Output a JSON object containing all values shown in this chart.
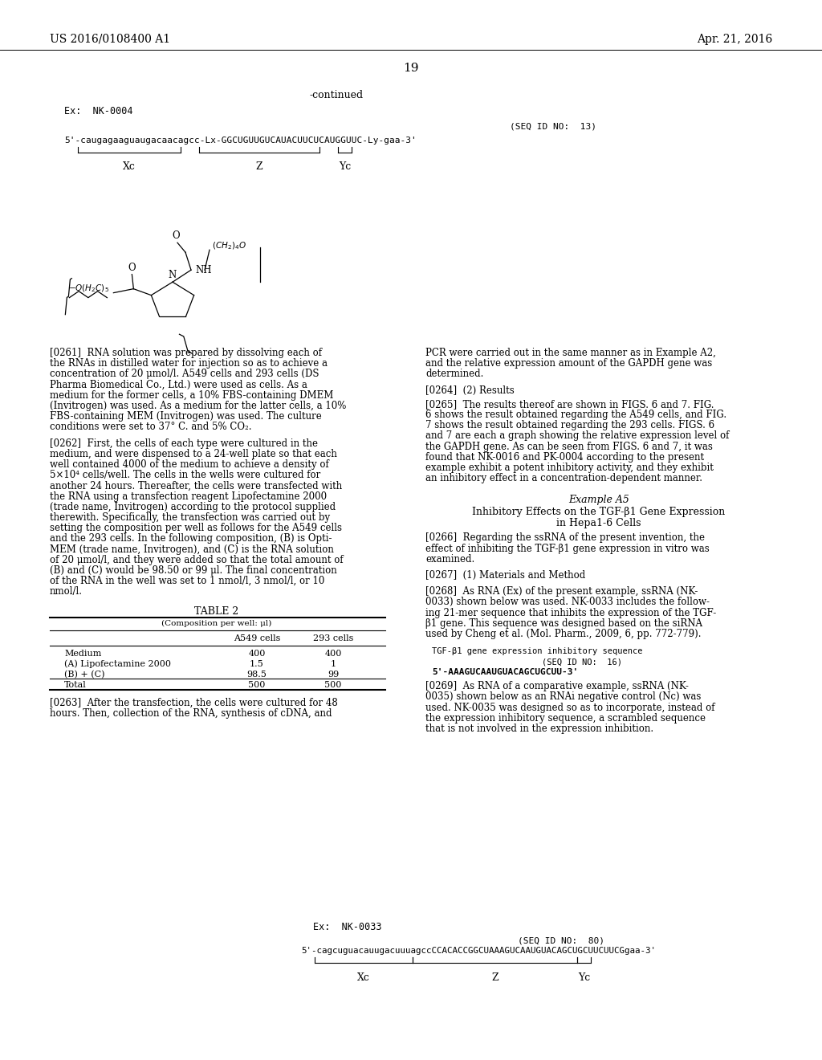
{
  "page_num": "19",
  "header_left": "US 2016/0108400 A1",
  "header_right": "Apr. 21, 2016",
  "continued_label": "-continued",
  "ex1_label": "Ex:  NK-0004",
  "seq_id1": "(SEQ ID NO:  13)",
  "seq1_text": "5'-caugagaaguaugacaacagcc-Lx-GGCUGUUGUCAUACUUCUCAUGGUUC-Ly-gaa-3'",
  "seq1_5prime": "5'-",
  "seq1_xc": "caugagaaguaugacaacagcc",
  "seq1_lx": "-Lx-",
  "seq1_z": "GGCUGUUGUCAUACUUCUCAUGGUUC",
  "seq1_ly": "-Ly-",
  "seq1_yc": "gaa",
  "seq1_3prime": "-3'",
  "para_0261_lines": [
    "[0261]  RNA solution was prepared by dissolving each of",
    "the RNAs in distilled water for injection so as to achieve a",
    "concentration of 20 μmol/l. A549 cells and 293 cells (DS",
    "Pharma Biomedical Co., Ltd.) were used as cells. As a",
    "medium for the former cells, a 10% FBS-containing DMEM",
    "(Invitrogen) was used. As a medium for the latter cells, a 10%",
    "FBS-containing MEM (Invitrogen) was used. The culture",
    "conditions were set to 37° C. and 5% CO₂."
  ],
  "para_0262_lines": [
    "[0262]  First, the cells of each type were cultured in the",
    "medium, and were dispensed to a 24-well plate so that each",
    "well contained 4000 of the medium to achieve a density of",
    "5×10⁴ cells/well. The cells in the wells were cultured for",
    "another 24 hours. Thereafter, the cells were transfected with",
    "the RNA using a transfection reagent Lipofectamine 2000",
    "(trade name, Invitrogen) according to the protocol supplied",
    "therewith. Specifically, the transfection was carried out by",
    "setting the composition per well as follows for the A549 cells",
    "and the 293 cells. In the following composition, (B) is Opti-",
    "MEM (trade name, Invitrogen), and (C) is the RNA solution",
    "of 20 μmol/l, and they were added so that the total amount of",
    "(B) and (C) would be 98.50 or 99 μl. The final concentration",
    "of the RNA in the well was set to 1 nmol/l, 3 nmol/l, or 10",
    "nmol/l."
  ],
  "table2_title": "TABLE 2",
  "table2_subtitle": "(Composition per well: μl)",
  "table2_col2": "A549 cells",
  "table2_col3": "293 cells",
  "table2_rows": [
    [
      "Medium",
      "400",
      "400"
    ],
    [
      "(A) Lipofectamine 2000",
      "1.5",
      "1"
    ],
    [
      "(B) + (C)",
      "98.5",
      "99"
    ],
    [
      "Total",
      "500",
      "500"
    ]
  ],
  "para_0263_lines": [
    "[0263]  After the transfection, the cells were cultured for 48",
    "hours. Then, collection of the RNA, synthesis of cDNA, and"
  ],
  "para_pcr_lines": [
    "PCR were carried out in the same manner as in Example A2,",
    "and the relative expression amount of the GAPDH gene was",
    "determined."
  ],
  "para_0264_lines": [
    "[0264]  (2) Results"
  ],
  "para_0265_lines": [
    "[0265]  The results thereof are shown in FIGS. 6 and 7. FIG.",
    "6 shows the result obtained regarding the A549 cells, and FIG.",
    "7 shows the result obtained regarding the 293 cells. FIGS. 6",
    "and 7 are each a graph showing the relative expression level of",
    "the GAPDH gene. As can be seen from FIGS. 6 and 7, it was",
    "found that NK-0016 and PK-0004 according to the present",
    "example exhibit a potent inhibitory activity, and they exhibit",
    "an inhibitory effect in a concentration-dependent manner."
  ],
  "example_a5_title": "Example A5",
  "example_a5_sub1": "Inhibitory Effects on the TGF-β1 Gene Expression",
  "example_a5_sub2": "in Hepa1-6 Cells",
  "para_0266_lines": [
    "[0266]  Regarding the ssRNA of the present invention, the",
    "effect of inhibiting the TGF-β1 gene expression in vitro was",
    "examined."
  ],
  "para_0267_lines": [
    "[0267]  (1) Materials and Method"
  ],
  "para_0268_lines": [
    "[0268]  As RNA (Ex) of the present example, ssRNA (NK-",
    "0033) shown below was used. NK-0033 includes the follow-",
    "ing 21-mer sequence that inhibits the expression of the TGF-",
    "β1 gene. This sequence was designed based on the siRNA",
    "used by Cheng et al. (Mol. Pharm., 2009, 6, pp. 772-779)."
  ],
  "tgf_label_line1": "TGF-β1 gene expression inhibitory sequence",
  "tgf_label_line2": "(SEQ ID NO:  16)",
  "tgf_seq": "5'-AAAGUCAAUGUACAGCUGCUU-3'",
  "para_0269_lines": [
    "[0269]  As RNA of a comparative example, ssRNA (NK-",
    "0035) shown below as an RNAi negative control (Nc) was",
    "used. NK-0035 was designed so as to incorporate, instead of",
    "the expression inhibitory sequence, a scrambled sequence",
    "that is not involved in the expression inhibition."
  ],
  "ex2_label": "Ex:  NK-0033",
  "seq_id2": "(SEQ ID NO:  80)",
  "seq2_5prime": "5'-",
  "seq2_xc": "cagcuguacauugacuuuagcc",
  "seq2_z": "CCACACCGGCUAAAGUCAAUGUACAGCUGCUUCUUCG",
  "seq2_yc": "gaa",
  "seq2_3prime": "-3'"
}
